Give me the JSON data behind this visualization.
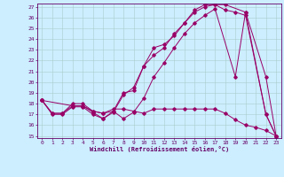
{
  "background_color": "#cceeff",
  "line_color": "#990066",
  "grid_color": "#aacccc",
  "xlim": [
    -0.5,
    23.5
  ],
  "ylim": [
    14.8,
    27.3
  ],
  "xticks": [
    0,
    1,
    2,
    3,
    4,
    5,
    6,
    7,
    8,
    9,
    10,
    11,
    12,
    13,
    14,
    15,
    16,
    17,
    18,
    19,
    20,
    21,
    22,
    23
  ],
  "yticks": [
    15,
    16,
    17,
    18,
    19,
    20,
    21,
    22,
    23,
    24,
    25,
    26,
    27
  ],
  "xlabel": "Windchill (Refroidissement éolien,°C)",
  "line1": {
    "x": [
      0,
      1,
      2,
      3,
      4,
      5,
      6,
      7,
      8,
      9,
      10,
      11,
      12,
      13,
      14,
      15,
      16,
      17,
      18,
      20,
      22,
      23
    ],
    "y": [
      18.3,
      17.1,
      17.1,
      17.8,
      17.8,
      17.3,
      17.1,
      17.3,
      19.0,
      19.2,
      21.5,
      23.2,
      23.5,
      24.3,
      25.5,
      26.5,
      27.0,
      27.2,
      27.2,
      26.5,
      20.5,
      15.0
    ]
  },
  "line2": {
    "x": [
      0,
      1,
      2,
      3,
      4,
      5,
      6,
      7,
      8,
      9,
      10,
      11,
      12,
      13,
      14,
      15,
      16,
      17,
      18,
      19,
      20,
      22,
      23
    ],
    "y": [
      18.3,
      17.0,
      17.0,
      17.7,
      17.7,
      17.0,
      16.6,
      17.2,
      18.8,
      19.5,
      21.5,
      22.5,
      23.2,
      24.5,
      25.5,
      26.7,
      27.2,
      27.2,
      26.7,
      26.5,
      26.2,
      17.0,
      15.0
    ]
  },
  "line3": {
    "x": [
      0,
      3,
      4,
      5,
      6,
      7,
      8,
      9,
      10,
      11,
      12,
      13,
      14,
      15,
      16,
      17,
      19,
      20,
      22,
      23
    ],
    "y": [
      18.3,
      17.8,
      17.8,
      17.2,
      16.6,
      17.3,
      16.6,
      17.2,
      18.5,
      20.5,
      21.8,
      23.2,
      24.5,
      25.5,
      26.2,
      26.8,
      20.5,
      26.5,
      17.0,
      15.0
    ]
  },
  "line4": {
    "x": [
      0,
      1,
      2,
      3,
      4,
      5,
      6,
      7,
      8,
      9,
      10,
      11,
      12,
      13,
      14,
      15,
      16,
      17,
      18,
      19,
      20,
      21,
      22,
      23
    ],
    "y": [
      18.3,
      17.1,
      17.1,
      18.0,
      18.0,
      17.3,
      17.1,
      17.5,
      17.5,
      17.3,
      17.1,
      17.5,
      17.5,
      17.5,
      17.5,
      17.5,
      17.5,
      17.5,
      17.1,
      16.5,
      16.0,
      15.8,
      15.5,
      15.0
    ]
  }
}
